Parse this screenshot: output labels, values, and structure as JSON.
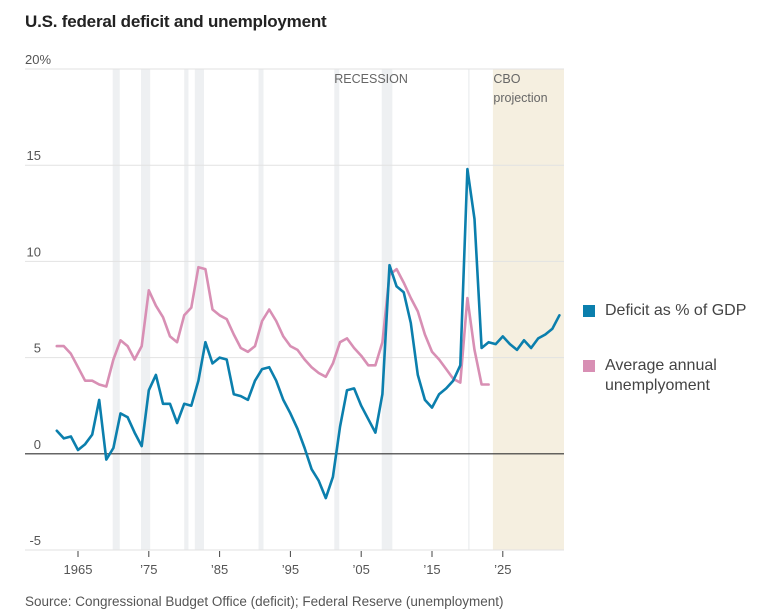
{
  "title": "U.S. federal deficit and unemployment",
  "source": "Source: Congressional Budget Office (deficit); Federal Reserve (unemployment)",
  "colors": {
    "deficit": "#0b7fad",
    "unemployment": "#d88fb4",
    "recession_band": "#eef0f2",
    "projection_band": "#f5efe0",
    "zero_line": "#333333",
    "grid": "#e2e2e2"
  },
  "chart_data": {
    "type": "line",
    "title": "U.S. federal deficit and unemployment",
    "xlabel": "",
    "ylabel": "",
    "xlim": [
      1958.5,
      2033.7
    ],
    "ylim": [
      -5,
      20
    ],
    "grid": true,
    "legend_position": "right",
    "x_ticks": [
      {
        "value": 1965,
        "label": "1965"
      },
      {
        "value": 1975,
        "label": "’75"
      },
      {
        "value": 1985,
        "label": "’85"
      },
      {
        "value": 1995,
        "label": "’95"
      },
      {
        "value": 2005,
        "label": "’05"
      },
      {
        "value": 2015,
        "label": "’15"
      },
      {
        "value": 2025,
        "label": "’25"
      }
    ],
    "y_ticks": [
      {
        "value": 20,
        "label": "20%"
      },
      {
        "value": 15,
        "label": "15"
      },
      {
        "value": 10,
        "label": "10"
      },
      {
        "value": 5,
        "label": "5"
      },
      {
        "value": 0,
        "label": "0"
      },
      {
        "value": -5,
        "label": "-5"
      }
    ],
    "annotations": {
      "recession_label": "RECESSION",
      "projection_label_line1": "CBO",
      "projection_label_line2": "projection"
    },
    "recessions": [
      [
        1969.9,
        1970.9
      ],
      [
        1973.9,
        1975.2
      ],
      [
        1980.0,
        1980.6
      ],
      [
        1981.5,
        1982.8
      ],
      [
        1990.5,
        1991.2
      ],
      [
        2001.2,
        2001.9
      ],
      [
        2007.9,
        2009.4
      ],
      [
        2020.1,
        2020.3
      ]
    ],
    "projection_range": [
      2023.6,
      2033.7
    ],
    "series": [
      {
        "name": "Deficit as % of GDP",
        "color": "#0b7fad",
        "x": [
          1962,
          1963,
          1964,
          1965,
          1966,
          1967,
          1968,
          1969,
          1970,
          1971,
          1972,
          1973,
          1974,
          1975,
          1976,
          1977,
          1978,
          1979,
          1980,
          1981,
          1982,
          1983,
          1984,
          1985,
          1986,
          1987,
          1988,
          1989,
          1990,
          1991,
          1992,
          1993,
          1994,
          1995,
          1996,
          1997,
          1998,
          1999,
          2000,
          2001,
          2002,
          2003,
          2004,
          2005,
          2006,
          2007,
          2008,
          2009,
          2010,
          2011,
          2012,
          2013,
          2014,
          2015,
          2016,
          2017,
          2018,
          2019,
          2020,
          2021,
          2022,
          2023,
          2024,
          2025,
          2026,
          2027,
          2028,
          2029,
          2030,
          2031,
          2032,
          2033
        ],
        "values": [
          1.2,
          0.8,
          0.9,
          0.2,
          0.5,
          1.0,
          2.8,
          -0.3,
          0.3,
          2.1,
          1.9,
          1.1,
          0.4,
          3.3,
          4.1,
          2.6,
          2.6,
          1.6,
          2.6,
          2.5,
          3.8,
          5.8,
          4.7,
          5.0,
          4.9,
          3.1,
          3.0,
          2.8,
          3.8,
          4.4,
          4.5,
          3.8,
          2.8,
          2.1,
          1.3,
          0.3,
          -0.8,
          -1.4,
          -2.3,
          -1.2,
          1.4,
          3.3,
          3.4,
          2.5,
          1.8,
          1.1,
          3.1,
          9.8,
          8.7,
          8.4,
          6.8,
          4.1,
          2.8,
          2.4,
          3.1,
          3.4,
          3.8,
          4.6,
          14.8,
          12.2,
          5.5,
          5.8,
          5.7,
          6.1,
          5.7,
          5.4,
          5.9,
          5.5,
          6.0,
          6.2,
          6.5,
          7.2
        ]
      },
      {
        "name": "Average annual unemployment",
        "color": "#d88fb4",
        "x": [
          1962,
          1963,
          1964,
          1965,
          1966,
          1967,
          1968,
          1969,
          1970,
          1971,
          1972,
          1973,
          1974,
          1975,
          1976,
          1977,
          1978,
          1979,
          1980,
          1981,
          1982,
          1983,
          1984,
          1985,
          1986,
          1987,
          1988,
          1989,
          1990,
          1991,
          1992,
          1993,
          1994,
          1995,
          1996,
          1997,
          1998,
          1999,
          2000,
          2001,
          2002,
          2003,
          2004,
          2005,
          2006,
          2007,
          2008,
          2009,
          2010,
          2011,
          2012,
          2013,
          2014,
          2015,
          2016,
          2017,
          2018,
          2019,
          2020,
          2021,
          2022,
          2023
        ],
        "values": [
          5.6,
          5.6,
          5.2,
          4.5,
          3.8,
          3.8,
          3.6,
          3.5,
          4.9,
          5.9,
          5.6,
          4.9,
          5.6,
          8.5,
          7.7,
          7.1,
          6.1,
          5.8,
          7.2,
          7.6,
          9.7,
          9.6,
          7.5,
          7.2,
          7.0,
          6.2,
          5.5,
          5.3,
          5.6,
          6.9,
          7.5,
          6.9,
          6.1,
          5.6,
          5.4,
          4.9,
          4.5,
          4.2,
          4.0,
          4.7,
          5.8,
          6.0,
          5.5,
          5.1,
          4.6,
          4.6,
          5.8,
          9.3,
          9.6,
          8.9,
          8.1,
          7.4,
          6.2,
          5.3,
          4.9,
          4.4,
          3.9,
          3.7,
          8.1,
          5.4,
          3.6,
          3.6
        ]
      }
    ]
  },
  "legend": [
    {
      "label_lines": [
        "Deficit as % of GDP"
      ],
      "color": "#0b7fad"
    },
    {
      "label_lines": [
        "Average annual",
        "unemplyoment"
      ],
      "color": "#d88fb4"
    }
  ]
}
